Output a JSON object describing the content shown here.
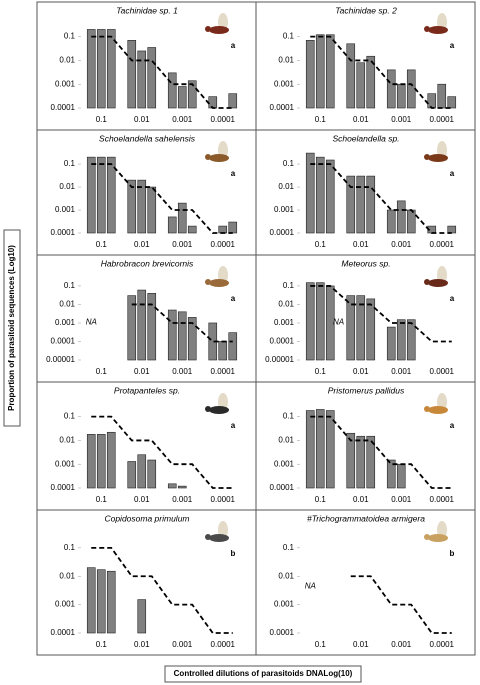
{
  "y_axis_label": "Proportion of parasitoid sequences (Log10)",
  "x_axis_label": "Controlled dilutions of parasitoids DNALog(10)",
  "chart_data": [
    {
      "type": "bar",
      "title": "Tachinidae sp. 1",
      "label": "a",
      "log_scale": true,
      "categories": [
        null,
        "0.1",
        null,
        null,
        "0.01",
        null,
        null,
        "0.001",
        null,
        null,
        "0.0001",
        null
      ],
      "series": [
        {
          "type": "bar",
          "color": "#808080",
          "values": [
            0.2,
            0.2,
            0.2,
            0.07,
            0.025,
            0.035,
            0.003,
            0.0008,
            0.0014,
            0.0003,
            null,
            0.0004
          ]
        },
        {
          "type": "line",
          "color": "#000000",
          "dashed": true,
          "values": [
            0.1,
            0.1,
            0.1,
            0.01,
            0.01,
            0.01,
            0.001,
            0.001,
            0.001,
            0.0001,
            0.0001,
            0.0001
          ]
        }
      ],
      "ylim": [
        0.0001,
        0.5
      ],
      "yticks": [
        0.1,
        0.01,
        0.001,
        0.0001
      ]
    },
    {
      "type": "bar",
      "title": "Tachinidae sp. 2",
      "label": "a",
      "log_scale": true,
      "categories": [
        null,
        "0.1",
        null,
        null,
        "0.01",
        null,
        null,
        "0.001",
        null,
        null,
        "0.0001",
        null
      ],
      "series": [
        {
          "type": "bar",
          "color": "#808080",
          "values": [
            0.07,
            0.12,
            0.12,
            0.05,
            0.008,
            0.015,
            0.004,
            0.001,
            0.004,
            0.0004,
            0.001,
            0.0003
          ]
        },
        {
          "type": "line",
          "color": "#000000",
          "dashed": true,
          "values": [
            0.1,
            0.1,
            0.1,
            0.01,
            0.01,
            0.01,
            0.001,
            0.001,
            0.001,
            0.0001,
            0.0001,
            0.0001
          ]
        }
      ],
      "ylim": [
        0.0001,
        0.5
      ],
      "yticks": [
        0.1,
        0.01,
        0.001,
        0.0001
      ]
    },
    {
      "type": "bar",
      "title": "Schoelandella sahelensis",
      "label": "a",
      "log_scale": true,
      "categories": [
        null,
        "0.1",
        null,
        null,
        "0.01",
        null,
        null,
        "0.001",
        null,
        null,
        "0.0001",
        null
      ],
      "series": [
        {
          "type": "bar",
          "color": "#808080",
          "values": [
            0.2,
            0.2,
            0.2,
            0.02,
            0.02,
            0.01,
            0.0005,
            0.002,
            0.0002,
            null,
            0.0002,
            0.0003
          ]
        },
        {
          "type": "line",
          "color": "#000000",
          "dashed": true,
          "values": [
            0.1,
            0.1,
            0.1,
            0.01,
            0.01,
            0.01,
            0.001,
            0.001,
            0.001,
            0.0001,
            0.0001,
            0.0001
          ]
        }
      ],
      "ylim": [
        0.0001,
        0.5
      ],
      "yticks": [
        0.1,
        0.01,
        0.001,
        0.0001
      ]
    },
    {
      "type": "bar",
      "title": "Schoelandella sp.",
      "label": "a",
      "log_scale": true,
      "categories": [
        null,
        "0.1",
        null,
        null,
        "0.01",
        null,
        null,
        "0.001",
        null,
        null,
        "0.0001",
        null
      ],
      "series": [
        {
          "type": "bar",
          "color": "#808080",
          "values": [
            0.3,
            0.2,
            0.15,
            0.03,
            0.03,
            0.03,
            0.001,
            0.0025,
            0.001,
            0.0002,
            null,
            0.0002
          ]
        },
        {
          "type": "line",
          "color": "#000000",
          "dashed": true,
          "values": [
            0.1,
            0.1,
            0.1,
            0.01,
            0.01,
            0.01,
            0.001,
            0.001,
            0.001,
            0.0001,
            0.0001,
            0.0001
          ]
        }
      ],
      "ylim": [
        0.0001,
        0.5
      ],
      "yticks": [
        0.1,
        0.01,
        0.001,
        0.0001
      ]
    },
    {
      "type": "bar",
      "title": "Habrobracon brevicornis",
      "label": "a",
      "na_label": "NA",
      "log_scale": true,
      "categories": [
        null,
        "0.1",
        null,
        null,
        "0.01",
        null,
        null,
        "0.001",
        null,
        null,
        "0.0001",
        null
      ],
      "series": [
        {
          "type": "bar",
          "color": "#808080",
          "values": [
            null,
            null,
            null,
            0.03,
            0.06,
            0.04,
            0.005,
            0.004,
            0.002,
            0.001,
            0.0001,
            0.0003
          ]
        },
        {
          "type": "line",
          "color": "#000000",
          "dashed": true,
          "values": [
            null,
            null,
            null,
            0.01,
            0.01,
            0.01,
            0.001,
            0.001,
            0.001,
            0.0001,
            0.0001,
            0.0001
          ]
        }
      ],
      "ylim": [
        1e-05,
        0.5
      ],
      "yticks": [
        0.1,
        0.01,
        0.001,
        0.0001,
        1e-05
      ]
    },
    {
      "type": "bar",
      "title": "Meteorus sp.",
      "label": "a",
      "na_label": "NA",
      "log_scale": true,
      "categories": [
        null,
        "0.1",
        null,
        null,
        "0.01",
        null,
        null,
        "0.001",
        null,
        null,
        "0.0001",
        null
      ],
      "series": [
        {
          "type": "bar",
          "color": "#808080",
          "values": [
            0.15,
            0.15,
            0.1,
            0.03,
            0.03,
            0.02,
            0.0006,
            0.0015,
            0.0015,
            null,
            null,
            null
          ]
        },
        {
          "type": "line",
          "color": "#000000",
          "dashed": true,
          "values": [
            0.1,
            0.1,
            0.1,
            0.01,
            0.01,
            0.01,
            0.001,
            0.001,
            0.001,
            0.0001,
            0.0001,
            0.0001
          ]
        }
      ],
      "ylim": [
        1e-05,
        0.5
      ],
      "yticks": [
        0.1,
        0.01,
        0.001,
        0.0001,
        1e-05
      ]
    },
    {
      "type": "bar",
      "title": "Protapanteles sp.",
      "label": "a",
      "log_scale": true,
      "categories": [
        null,
        "0.1",
        null,
        null,
        "0.01",
        null,
        null,
        "0.001",
        null,
        null,
        "0.0001",
        null
      ],
      "series": [
        {
          "type": "bar",
          "color": "#808080",
          "values": [
            0.018,
            0.018,
            0.022,
            0.0013,
            0.0025,
            0.0015,
            0.00015,
            0.00012,
            null,
            null,
            null,
            null
          ]
        },
        {
          "type": "line",
          "color": "#000000",
          "dashed": true,
          "values": [
            0.1,
            0.1,
            0.1,
            0.01,
            0.01,
            0.01,
            0.001,
            0.001,
            0.001,
            0.0001,
            0.0001,
            0.0001
          ]
        }
      ],
      "ylim": [
        0.0001,
        0.5
      ],
      "yticks": [
        0.1,
        0.01,
        0.001,
        0.0001
      ]
    },
    {
      "type": "bar",
      "title": "Pristomerus pallidus",
      "label": "a",
      "log_scale": true,
      "categories": [
        null,
        "0.1",
        null,
        null,
        "0.01",
        null,
        null,
        "0.001",
        null,
        null,
        "0.0001",
        null
      ],
      "series": [
        {
          "type": "bar",
          "color": "#808080",
          "values": [
            0.18,
            0.2,
            0.18,
            0.02,
            0.015,
            0.015,
            0.0015,
            0.001,
            null,
            null,
            null,
            null
          ]
        },
        {
          "type": "line",
          "color": "#000000",
          "dashed": true,
          "values": [
            0.1,
            0.1,
            0.1,
            0.01,
            0.01,
            0.01,
            0.001,
            0.001,
            0.001,
            0.0001,
            0.0001,
            0.0001
          ]
        }
      ],
      "ylim": [
        0.0001,
        0.5
      ],
      "yticks": [
        0.1,
        0.01,
        0.001,
        0.0001
      ]
    },
    {
      "type": "bar",
      "title": "Copidosoma primulum",
      "label": "b",
      "log_scale": true,
      "categories": [
        null,
        "0.1",
        null,
        null,
        "0.01",
        null,
        null,
        "0.001",
        null,
        null,
        "0.0001",
        null
      ],
      "series": [
        {
          "type": "bar",
          "color": "#808080",
          "values": [
            0.02,
            0.017,
            0.015,
            null,
            0.0015,
            null,
            null,
            null,
            null,
            null,
            null,
            null
          ]
        },
        {
          "type": "line",
          "color": "#000000",
          "dashed": true,
          "values": [
            0.1,
            0.1,
            0.1,
            0.01,
            0.01,
            0.01,
            0.001,
            0.001,
            0.001,
            0.0001,
            0.0001,
            0.0001
          ]
        }
      ],
      "ylim": [
        0.0001,
        0.5
      ],
      "yticks": [
        0.1,
        0.01,
        0.001,
        0.0001
      ]
    },
    {
      "type": "bar",
      "title": "#Trichogrammatoidea armigera",
      "label": "b",
      "na_label": "NA",
      "log_scale": true,
      "categories": [
        null,
        "0.1",
        null,
        null,
        "0.01",
        null,
        null,
        "0.001",
        null,
        null,
        "0.0001",
        null
      ],
      "series": [
        {
          "type": "bar",
          "color": "#808080",
          "values": [
            null,
            null,
            null,
            null,
            null,
            null,
            null,
            null,
            null,
            null,
            null,
            null
          ]
        },
        {
          "type": "line",
          "color": "#000000",
          "dashed": true,
          "values": [
            null,
            null,
            null,
            0.01,
            0.01,
            0.01,
            0.001,
            0.001,
            0.001,
            0.0001,
            0.0001,
            0.0001
          ]
        }
      ],
      "ylim": [
        0.0001,
        0.5
      ],
      "yticks": [
        0.1,
        0.01,
        0.001,
        0.0001
      ]
    }
  ]
}
